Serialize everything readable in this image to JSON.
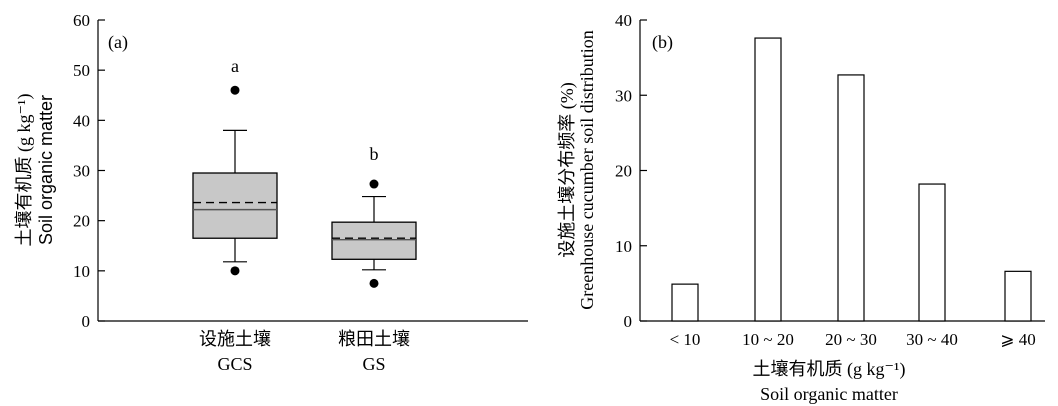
{
  "chart_data": [
    {
      "type": "box",
      "panel_label": "(a)",
      "ylabel_cn": "土壤有机质 (g kg⁻¹)",
      "ylabel_en": "Soil organic matter",
      "ylim": [
        0,
        60
      ],
      "yticks": [
        0,
        10,
        20,
        30,
        40,
        50,
        60
      ],
      "grid": false,
      "boxes": [
        {
          "label_cn": "设施土壤",
          "label_en": "GCS",
          "letter": "a",
          "whisker_low": 11.8,
          "q1": 16.5,
          "median": 22.2,
          "mean": 23.6,
          "q3": 29.5,
          "whisker_high": 38.0,
          "outliers": [
            10.0,
            46.0
          ]
        },
        {
          "label_cn": "粮田土壤",
          "label_en": "GS",
          "letter": "b",
          "whisker_low": 10.2,
          "q1": 12.3,
          "median": 16.2,
          "mean": 16.5,
          "q3": 19.7,
          "whisker_high": 24.8,
          "outliers": [
            7.5,
            27.3
          ]
        }
      ]
    },
    {
      "type": "bar",
      "panel_label": "(b)",
      "ylabel_cn": "设施土壤分布频率 (%)",
      "ylabel_en": "Greenhouse cucumber soil distribution",
      "xlabel_cn": "土壤有机质 (g kg⁻¹)",
      "xlabel_en": "Soil organic matter",
      "ylim": [
        0,
        40
      ],
      "yticks": [
        0,
        10,
        20,
        30,
        40
      ],
      "grid": false,
      "categories": [
        "< 10",
        "10 ~ 20",
        "20 ~ 30",
        "30 ~ 40",
        "⩾ 40"
      ],
      "values": [
        4.9,
        37.6,
        32.7,
        18.2,
        6.6
      ]
    }
  ]
}
